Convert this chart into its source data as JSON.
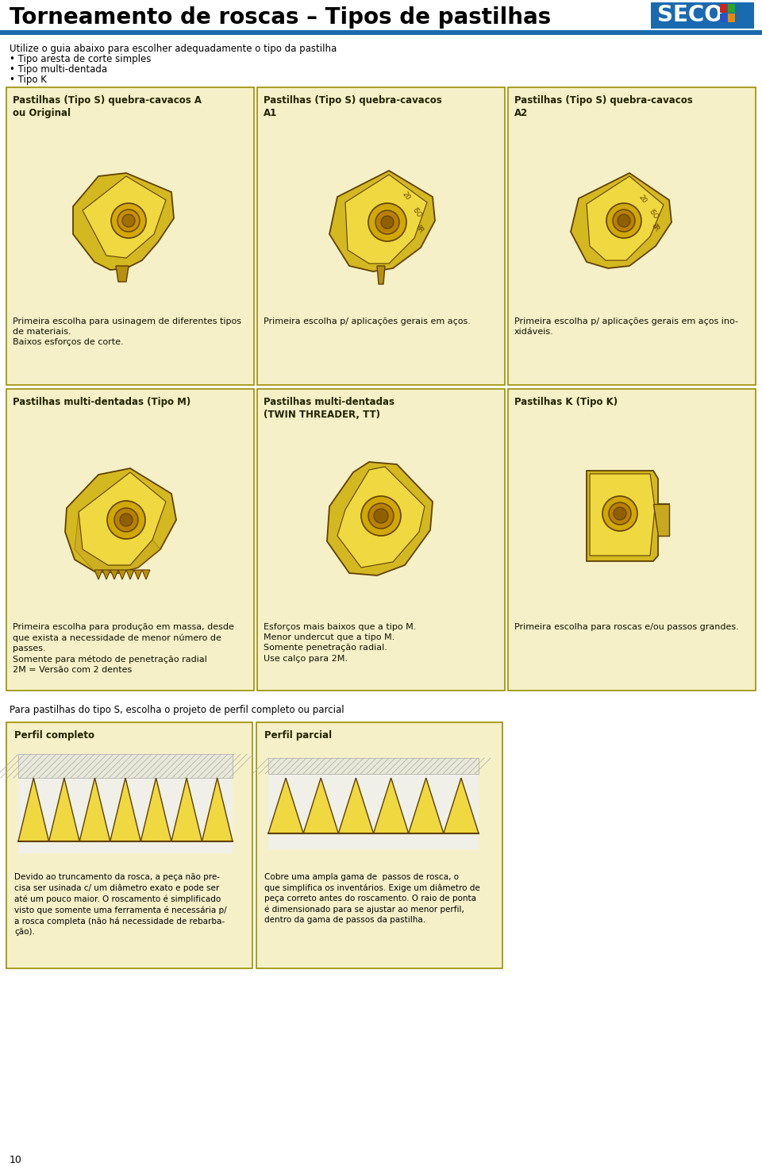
{
  "title": "Torneamento de roscas – Tipos de pastilhas",
  "blue_bar_color": "#1a6ab0",
  "page_bg": "#ffffff",
  "cell_bg": "#f5f0c8",
  "cell_border": "#999000",
  "intro_text": "Utilize o guia abaixo para escolher adequadamente o tipo da pastilha",
  "bullets": [
    "• Tipo aresta de corte simples",
    "• Tipo multi-dentada",
    "• Tipo K"
  ],
  "row1_titles": [
    "Pastilhas (Tipo S) quebra-cavacos A\nou Original",
    "Pastilhas (Tipo S) quebra-cavacos\nA1",
    "Pastilhas (Tipo S) quebra-cavacos\nA2"
  ],
  "row1_texts": [
    "Primeira escolha para usinagem de diferentes tipos\nde materiais.\nBaixos esforços de corte.",
    "Primeira escolha p/ aplicações gerais em aços.",
    "Primeira escolha p/ aplicações gerais em aços ino-\nxidáveis."
  ],
  "row2_titles": [
    "Pastilhas multi-dentadas (Tipo M)",
    "Pastilhas multi-dentadas\n(TWIN THREADER, TT)",
    "Pastilhas K (Tipo K)"
  ],
  "row2_texts": [
    "Primeira escolha para produção em massa, desde\nque exista a necessidade de menor número de\npasses.\nSomente para método de penetração radial\n2M = Versão com 2 dentes",
    "Esforços mais baixos que a tipo M.\nMenor undercut que a tipo M.\nSomente penetração radial.\nUse calço para 2M.",
    "Primeira escolha para roscas e/ou passos grandes."
  ],
  "bottom_text": "Para pastilhas do tipo S, escolha o projeto de perfil completo ou parcial",
  "perfil_titles": [
    "Perfil completo",
    "Perfil parcial"
  ],
  "perfil_text_left": "Devido ao truncamento da rosca, a peça não pre-\ncisa ser usinada c/ um diâmetro exato e pode ser\naté um pouco maior. O roscamento é simplificado\nvisto que somente uma ferramenta é necessária p/\na rosca completa (não há necessidade de rebarba-\nção).",
  "perfil_text_right": "Cobre uma ampla gama de  passos de rosca, o\nque simplifica os inventários. Exige um diâmetro de\npeça correto antes do roscamento. O raio de ponta\né dimensionado para se ajustar ao menor perfil,\ndentro da gama de passos da pastilha.",
  "page_number": "10",
  "ins_gold_light": "#f0d840",
  "ins_gold_mid": "#d4b820",
  "ins_gold_dark": "#b89010",
  "ins_outline": "#604000",
  "seco_blue": "#1565c0",
  "seco_text_color": "#1565c0"
}
